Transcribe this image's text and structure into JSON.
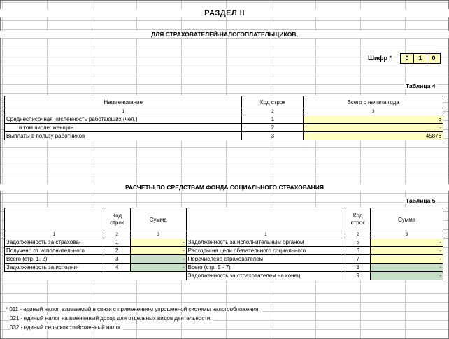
{
  "header": {
    "title": "РАЗДЕЛ II",
    "subtitle": "ДЛЯ СТРАХОВАТЕЛЕЙ-НАЛОГОПЛАТЕЛЬЩИКОВ,",
    "cipher_label": "Шифр *",
    "cipher": [
      "0",
      "1",
      "0"
    ]
  },
  "table4": {
    "label": "Таблица 4",
    "columns": [
      "Наименование",
      "Код строк",
      "Всего с начала года"
    ],
    "column_numbers": [
      "1",
      "2",
      "3"
    ],
    "rows": [
      {
        "name": "Среднесписочная численность работающих (чел.)",
        "code": "1",
        "value": "6"
      },
      {
        "name": "в том числе: женщин",
        "code": "2",
        "value": "-"
      },
      {
        "name": "Выплаты в пользу работников",
        "code": "3",
        "value": "45876"
      }
    ]
  },
  "section_title": "РАСЧЕТЫ ПО СРЕДСТВАМ ФОНДА СОЦИАЛЬНОГО СТРАХОВАНИЯ",
  "table5": {
    "label": "Таблица 5",
    "col_code_1": "Код",
    "col_code_2": "строк",
    "col_sum": "Сумма",
    "column_numbers": [
      "1",
      "2",
      "3"
    ],
    "left_rows": [
      {
        "name": "Задолженность за страхова-",
        "code": "1",
        "value": "-"
      },
      {
        "name": "Получено от исполнительного",
        "code": "2",
        "value": "-"
      },
      {
        "name": "Всего (стр. 1, 2)",
        "code": "3",
        "value": "-"
      },
      {
        "name": "Задолженность за исполни-",
        "code": "4",
        "value": "-"
      }
    ],
    "right_rows": [
      {
        "name": "Задолженность за исполнительным органом",
        "code": "5",
        "value": "-"
      },
      {
        "name": "Расходы на цели обязательного социального",
        "code": "6",
        "value": "-"
      },
      {
        "name": "Перечислено страхователем",
        "code": "7",
        "value": "-"
      },
      {
        "name": "Всего (стр. 5 - 7)",
        "code": "8",
        "value": "-"
      },
      {
        "name": "Задолженность за страхователем на конец",
        "code": "9",
        "value": "-"
      }
    ]
  },
  "footnotes": [
    "* 011 - единый налог, взимаемый в связи с применением упрощенной системы налогообложения;",
    "021 - единый налог на вмененный доход для отдельных видов деятельности;",
    "032 - единый сельскохозяйственный налог."
  ]
}
